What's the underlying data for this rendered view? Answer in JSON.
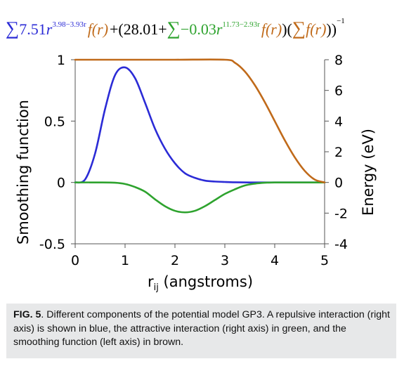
{
  "equation": {
    "part1": {
      "sigma": "∑",
      "coef": "7.51",
      "base": "r",
      "exponent": "3.98−3.93r",
      "f": "f(r)"
    },
    "plus_open": "+(28.01+",
    "part2": {
      "sigma": "∑",
      "coef": "−0.03",
      "base": "r",
      "exponent": "11.73−2.93r",
      "f": "f(r)"
    },
    "close": ")",
    "part3": {
      "sigma": "∑",
      "f": "f(r)"
    },
    "inverse_exponent": "−1",
    "colors": {
      "blue": "#2b2bd6",
      "brown": "#c06a1a",
      "green": "#2ea32e",
      "black": "#000000"
    }
  },
  "chart_data": {
    "type": "line",
    "xlabel_main": "r",
    "xlabel_sub": "ij",
    "xlabel_rest": " (angstroms)",
    "ylabel_left": "Smoothing function",
    "ylabel_right": "Energy (eV)",
    "xlim": [
      0,
      5
    ],
    "ylim_left": [
      -0.5,
      1
    ],
    "ylim_right": [
      -4,
      8
    ],
    "x_ticks": [
      0,
      1,
      2,
      3,
      4,
      5
    ],
    "y_left_ticks": [
      1,
      0.5,
      0,
      -0.5
    ],
    "y_right_ticks": [
      8,
      6,
      4,
      2,
      0,
      -2,
      -4
    ],
    "series": [
      {
        "axis": "right",
        "color": "#2b2bd6",
        "x": [
          0,
          0.2,
          0.4,
          0.6,
          0.8,
          1.0,
          1.2,
          1.4,
          1.6,
          1.8,
          2.0,
          2.2,
          2.4,
          2.6,
          2.8,
          3.0,
          3.2,
          3.5,
          4.0,
          4.5,
          5.0
        ],
        "y": [
          0,
          0.2,
          1.9,
          4.8,
          7.0,
          7.5,
          6.8,
          5.2,
          3.5,
          2.2,
          1.25,
          0.6,
          0.3,
          0.12,
          0.06,
          0.03,
          0.01,
          0,
          0,
          0,
          0
        ]
      },
      {
        "axis": "right",
        "color": "#2ea32e",
        "x": [
          0,
          0.5,
          0.8,
          1.0,
          1.2,
          1.4,
          1.6,
          1.8,
          2.0,
          2.2,
          2.4,
          2.6,
          2.8,
          3.0,
          3.2,
          3.4,
          3.6,
          3.8,
          4.0,
          4.5,
          5.0
        ],
        "y": [
          0,
          0,
          -0.02,
          -0.1,
          -0.3,
          -0.6,
          -1.1,
          -1.55,
          -1.85,
          -1.95,
          -1.85,
          -1.55,
          -1.15,
          -0.75,
          -0.45,
          -0.2,
          -0.08,
          -0.02,
          0,
          0,
          0
        ]
      },
      {
        "axis": "left",
        "color": "#c06a1a",
        "x": [
          0,
          1,
          2,
          3.0,
          3.2,
          3.4,
          3.6,
          3.8,
          4.0,
          4.2,
          4.4,
          4.6,
          4.8,
          5.0
        ],
        "y": [
          1,
          1,
          1,
          1,
          0.976,
          0.905,
          0.794,
          0.655,
          0.5,
          0.345,
          0.206,
          0.095,
          0.024,
          0
        ]
      }
    ]
  },
  "caption": {
    "label": "FIG. 5",
    "text": ". Different components of the potential model GP3. A repulsive interaction (right axis) is shown in blue, the attractive interaction (right axis) in green, and the smoothing function (left axis) in brown."
  }
}
